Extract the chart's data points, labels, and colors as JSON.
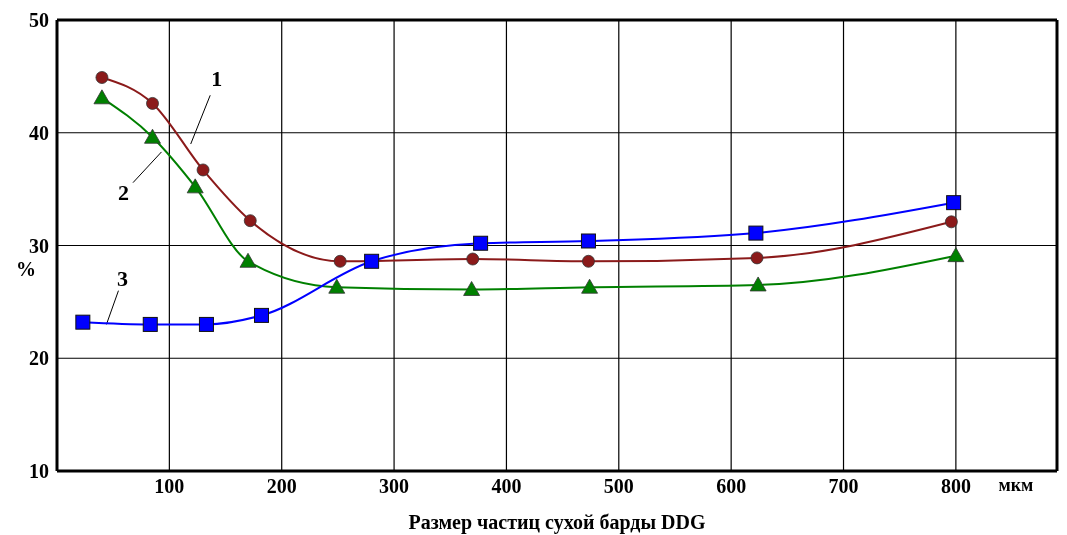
{
  "chart_data": {
    "type": "line",
    "xlabel": "Размер частиц сухой барды DDG",
    "ylabel": "%",
    "xlim": [
      0,
      890
    ],
    "xticks": [
      100,
      200,
      300,
      400,
      500,
      600,
      700,
      800
    ],
    "ylim": [
      10,
      50
    ],
    "yticks": [
      10,
      20,
      30,
      40,
      50
    ],
    "grid": true,
    "series": [
      {
        "color": "#8b1a1a",
        "marker": "circle",
        "x": [
          40,
          85,
          130,
          172,
          252,
          370,
          473,
          623,
          796
        ],
        "values": [
          44.9,
          42.6,
          36.7,
          32.2,
          28.6,
          28.8,
          28.6,
          28.9,
          32.1
        ]
      },
      {
        "color": "#008000",
        "marker": "triangle",
        "x": [
          40,
          85,
          123,
          170,
          249,
          369,
          474,
          624,
          800
        ],
        "values": [
          43.1,
          39.6,
          35.2,
          28.6,
          26.3,
          26.1,
          26.3,
          26.5,
          29.1
        ]
      },
      {
        "color": "#0000ff",
        "marker": "square",
        "x": [
          23,
          83,
          133,
          182,
          280,
          377,
          473,
          622,
          798
        ],
        "values": [
          23.2,
          23.0,
          23.0,
          23.8,
          28.6,
          30.2,
          30.4,
          31.1,
          33.8
        ]
      }
    ],
    "annotations": [
      {
        "text": "1",
        "x": 119,
        "y": 39.0
      },
      {
        "text": "2",
        "x": 93,
        "y": 38.3
      },
      {
        "text": "3",
        "x": 44,
        "y": 23.0
      },
      "мкм"
    ]
  }
}
